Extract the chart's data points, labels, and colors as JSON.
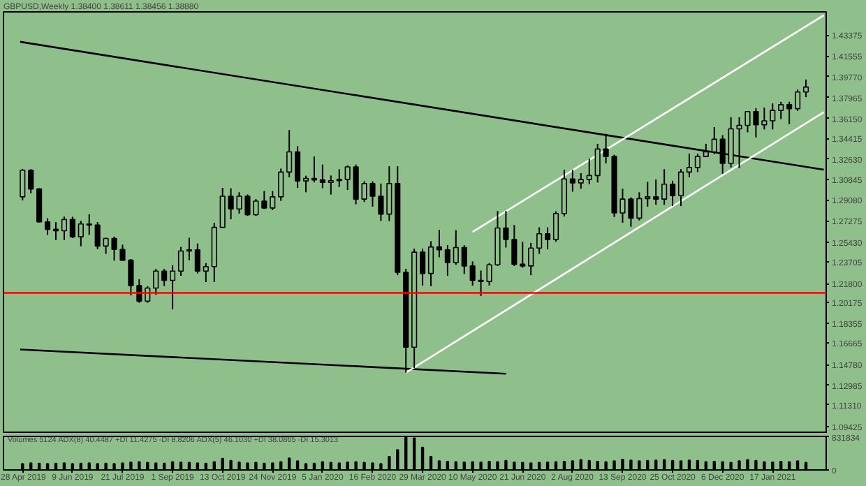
{
  "chart_data": [
    {
      "type": "candlestick",
      "title": "GBPUSD,Weekly 1.38400 1.38611 1.38456 1.38880",
      "x": [
        "2019-04-28",
        "2019-05-05",
        "2019-05-12",
        "2019-05-19",
        "2019-05-26",
        "2019-06-02",
        "2019-06-09",
        "2019-06-16",
        "2019-06-23",
        "2019-06-30",
        "2019-07-07",
        "2019-07-14",
        "2019-07-21",
        "2019-07-28",
        "2019-08-04",
        "2019-08-11",
        "2019-08-18",
        "2019-08-25",
        "2019-09-01",
        "2019-09-08",
        "2019-09-15",
        "2019-09-22",
        "2019-09-29",
        "2019-10-06",
        "2019-10-13",
        "2019-10-20",
        "2019-10-27",
        "2019-11-03",
        "2019-11-10",
        "2019-11-17",
        "2019-11-24",
        "2019-12-01",
        "2019-12-08",
        "2019-12-15",
        "2019-12-22",
        "2019-12-29",
        "2020-01-05",
        "2020-01-12",
        "2020-01-19",
        "2020-01-26",
        "2020-02-02",
        "2020-02-09",
        "2020-02-16",
        "2020-02-23",
        "2020-03-01",
        "2020-03-08",
        "2020-03-15",
        "2020-03-22",
        "2020-03-29",
        "2020-04-05",
        "2020-04-12",
        "2020-04-19",
        "2020-04-26",
        "2020-05-03",
        "2020-05-10",
        "2020-05-17",
        "2020-05-24",
        "2020-05-31",
        "2020-06-07",
        "2020-06-14",
        "2020-06-21",
        "2020-06-28",
        "2020-07-05",
        "2020-07-12",
        "2020-07-19",
        "2020-07-26",
        "2020-08-02",
        "2020-08-09",
        "2020-08-16",
        "2020-08-23",
        "2020-08-30",
        "2020-09-06",
        "2020-09-13",
        "2020-09-20",
        "2020-09-27",
        "2020-10-04",
        "2020-10-11",
        "2020-10-18",
        "2020-10-25",
        "2020-11-01",
        "2020-11-08",
        "2020-11-15",
        "2020-11-22",
        "2020-11-29",
        "2020-12-06",
        "2020-12-13",
        "2020-12-20",
        "2020-12-27",
        "2021-01-03",
        "2021-01-10",
        "2021-01-17",
        "2021-01-24",
        "2021-01-31",
        "2021-02-07",
        "2021-02-14"
      ],
      "ohlc": [
        [
          1.2935,
          1.3177,
          1.2904,
          1.3166
        ],
        [
          1.3166,
          1.3175,
          1.2966,
          1.3003
        ],
        [
          1.3003,
          1.301,
          1.2712,
          1.2718
        ],
        [
          1.2718,
          1.2749,
          1.2605,
          1.2653
        ],
        [
          1.2653,
          1.2715,
          1.2559,
          1.264
        ],
        [
          1.264,
          1.2763,
          1.256,
          1.2738
        ],
        [
          1.2738,
          1.2762,
          1.2577,
          1.2588
        ],
        [
          1.2588,
          1.2727,
          1.2506,
          1.2699
        ],
        [
          1.2699,
          1.2784,
          1.2606,
          1.269
        ],
        [
          1.269,
          1.2716,
          1.248,
          1.2508
        ],
        [
          1.2508,
          1.258,
          1.244,
          1.2574
        ],
        [
          1.2574,
          1.259,
          1.2382,
          1.2478
        ],
        [
          1.2478,
          1.252,
          1.238,
          1.2385
        ],
        [
          1.2385,
          1.2395,
          1.208,
          1.2165
        ],
        [
          1.2165,
          1.222,
          1.2015,
          1.203
        ],
        [
          1.203,
          1.216,
          1.2015,
          1.2143
        ],
        [
          1.2143,
          1.231,
          1.2085,
          1.229
        ],
        [
          1.229,
          1.231,
          1.216,
          1.221
        ],
        [
          1.221,
          1.234,
          1.1958,
          1.229
        ],
        [
          1.229,
          1.25,
          1.225,
          1.2465
        ],
        [
          1.2465,
          1.258,
          1.2385,
          1.2475
        ],
        [
          1.2475,
          1.253,
          1.227,
          1.229
        ],
        [
          1.229,
          1.236,
          1.2195,
          1.233
        ],
        [
          1.233,
          1.271,
          1.2195,
          1.267
        ],
        [
          1.267,
          1.3013,
          1.267,
          1.294
        ],
        [
          1.294,
          1.301,
          1.274,
          1.283
        ],
        [
          1.283,
          1.2975,
          1.279,
          1.294
        ],
        [
          1.294,
          1.2955,
          1.277,
          1.278
        ],
        [
          1.278,
          1.2915,
          1.277,
          1.2898
        ],
        [
          1.2898,
          1.2985,
          1.283,
          1.2838
        ],
        [
          1.2838,
          1.2985,
          1.282,
          1.2935
        ],
        [
          1.2935,
          1.318,
          1.29,
          1.315
        ],
        [
          1.315,
          1.3514,
          1.3105,
          1.3325
        ],
        [
          1.3325,
          1.3375,
          1.3012,
          1.3073
        ],
        [
          1.3073,
          1.3118,
          1.2975,
          1.3095
        ],
        [
          1.3095,
          1.3285,
          1.306,
          1.3082
        ],
        [
          1.3082,
          1.3215,
          1.301,
          1.306
        ],
        [
          1.306,
          1.312,
          1.2955,
          1.3075
        ],
        [
          1.3075,
          1.3175,
          1.302,
          1.3085
        ],
        [
          1.3085,
          1.3208,
          1.2995,
          1.3195
        ],
        [
          1.3195,
          1.3215,
          1.287,
          1.2915
        ],
        [
          1.2915,
          1.307,
          1.289,
          1.305
        ],
        [
          1.305,
          1.307,
          1.285,
          1.294
        ],
        [
          1.294,
          1.305,
          1.2725,
          1.2785
        ],
        [
          1.2785,
          1.32,
          1.2725,
          1.305
        ],
        [
          1.305,
          1.32,
          1.2255,
          1.228
        ],
        [
          1.228,
          1.231,
          1.1409,
          1.163
        ],
        [
          1.163,
          1.2485,
          1.145,
          1.2455
        ],
        [
          1.2455,
          1.2485,
          1.2165,
          1.227
        ],
        [
          1.227,
          1.255,
          1.216,
          1.25
        ],
        [
          1.25,
          1.2648,
          1.241,
          1.2475
        ],
        [
          1.2475,
          1.2515,
          1.225,
          1.2365
        ],
        [
          1.2365,
          1.2645,
          1.2345,
          1.2495
        ],
        [
          1.2495,
          1.2515,
          1.2265,
          1.2335
        ],
        [
          1.2335,
          1.2375,
          1.2165,
          1.221
        ],
        [
          1.221,
          1.2295,
          1.2075,
          1.22
        ],
        [
          1.22,
          1.236,
          1.2165,
          1.2345
        ],
        [
          1.2345,
          1.2812,
          1.2335,
          1.2665
        ],
        [
          1.2665,
          1.2812,
          1.2495,
          1.2565
        ],
        [
          1.2565,
          1.269,
          1.2335,
          1.235
        ],
        [
          1.235,
          1.2545,
          1.232,
          1.2335
        ],
        [
          1.2335,
          1.2535,
          1.2255,
          1.249
        ],
        [
          1.249,
          1.267,
          1.244,
          1.2615
        ],
        [
          1.2615,
          1.267,
          1.248,
          1.2565
        ],
        [
          1.2565,
          1.281,
          1.2545,
          1.279
        ],
        [
          1.279,
          1.317,
          1.2765,
          1.309
        ],
        [
          1.309,
          1.317,
          1.298,
          1.3055
        ],
        [
          1.3055,
          1.314,
          1.3005,
          1.3085
        ],
        [
          1.3085,
          1.3265,
          1.3045,
          1.312
        ],
        [
          1.312,
          1.3395,
          1.306,
          1.335
        ],
        [
          1.335,
          1.3482,
          1.3225,
          1.3285
        ],
        [
          1.3285,
          1.33,
          1.276,
          1.2795
        ],
        [
          1.2795,
          1.3005,
          1.271,
          1.2915
        ],
        [
          1.2915,
          1.293,
          1.2675,
          1.275
        ],
        [
          1.275,
          1.2975,
          1.273,
          1.292
        ],
        [
          1.292,
          1.3065,
          1.285,
          1.2935
        ],
        [
          1.2935,
          1.3085,
          1.2865,
          1.2915
        ],
        [
          1.2915,
          1.3175,
          1.2865,
          1.3045
        ],
        [
          1.3045,
          1.3075,
          1.2855,
          1.2945
        ],
        [
          1.2945,
          1.3175,
          1.2855,
          1.315
        ],
        [
          1.315,
          1.331,
          1.3105,
          1.319
        ],
        [
          1.319,
          1.331,
          1.315,
          1.3285
        ],
        [
          1.3285,
          1.3395,
          1.328,
          1.3325
        ],
        [
          1.3325,
          1.354,
          1.3305,
          1.3435
        ],
        [
          1.3435,
          1.347,
          1.3135,
          1.3225
        ],
        [
          1.3225,
          1.3625,
          1.319,
          1.3525
        ],
        [
          1.3525,
          1.3625,
          1.3185,
          1.3555
        ],
        [
          1.3555,
          1.368,
          1.3495,
          1.3675
        ],
        [
          1.3675,
          1.3705,
          1.345,
          1.356
        ],
        [
          1.356,
          1.371,
          1.352,
          1.3595
        ],
        [
          1.3595,
          1.3745,
          1.352,
          1.3685
        ],
        [
          1.3685,
          1.376,
          1.361,
          1.3735
        ],
        [
          1.3735,
          1.376,
          1.3565,
          1.37
        ],
        [
          1.37,
          1.3865,
          1.368,
          1.3845
        ],
        [
          1.3845,
          1.3953,
          1.38,
          1.3888
        ]
      ],
      "series": [
        {
          "type": "line",
          "color": "#000000",
          "x": [
            "2019-04-26",
            "2021-03-01"
          ],
          "values": [
            1.428,
            1.317
          ]
        },
        {
          "type": "line",
          "color": "#000000",
          "x": [
            "2019-04-26",
            "2020-06-07"
          ],
          "values": [
            1.161,
            1.14
          ]
        },
        {
          "type": "line",
          "color": "#ffffff",
          "x": [
            "2020-03-15",
            "2021-03-01"
          ],
          "values": [
            1.141,
            1.367
          ]
        },
        {
          "type": "line",
          "color": "#ffffff",
          "x": [
            "2020-05-10",
            "2021-03-01"
          ],
          "values": [
            1.263,
            1.451
          ]
        }
      ],
      "ref_lines": [
        {
          "axis": "y",
          "value": 1.2101,
          "label": null,
          "color": "#ff0000"
        }
      ],
      "xlim": [
        "2019-04-12",
        "2021-03-03"
      ],
      "ylim": [
        1.088,
        1.454
      ],
      "yticks": [
        1.43375,
        1.41555,
        {
          "value": 1.3977,
          "label": "1.39770"
        },
        1.37965,
        {
          "value": 1.3615,
          "label": "1.36150"
        },
        1.34415,
        {
          "value": 1.3263,
          "label": "1.32630"
        },
        1.30845,
        {
          "value": 1.2908,
          "label": "1.29080"
        },
        1.27275,
        {
          "value": 1.2543,
          "label": "1.25430"
        },
        1.23705,
        {
          "value": 1.218,
          "label": "1.21800"
        },
        1.20175,
        1.18355,
        1.16665,
        {
          "value": 1.1478,
          "label": "1.14780"
        },
        1.12985,
        {
          "value": 1.1131,
          "label": "1.11310"
        },
        1.09425
      ],
      "tick_labels": "y",
      "grid": false
    },
    {
      "type": "bar",
      "annotations": [
        "Volumes 5124 ADX(8) 40.4487 +DI 11.4275 -DI 8.8206 ADX(5) 46.1030 +DI 38.0865 -DI 15.3013"
      ],
      "x": [
        "2019-04-28",
        "2019-05-05",
        "2019-05-12",
        "2019-05-19",
        "2019-05-26",
        "2019-06-02",
        "2019-06-09",
        "2019-06-16",
        "2019-06-23",
        "2019-06-30",
        "2019-07-07",
        "2019-07-14",
        "2019-07-21",
        "2019-07-28",
        "2019-08-04",
        "2019-08-11",
        "2019-08-18",
        "2019-08-25",
        "2019-09-01",
        "2019-09-08",
        "2019-09-15",
        "2019-09-22",
        "2019-09-29",
        "2019-10-06",
        "2019-10-13",
        "2019-10-20",
        "2019-10-27",
        "2019-11-03",
        "2019-11-10",
        "2019-11-17",
        "2019-11-24",
        "2019-12-01",
        "2019-12-08",
        "2019-12-15",
        "2019-12-22",
        "2019-12-29",
        "2020-01-05",
        "2020-01-12",
        "2020-01-19",
        "2020-01-26",
        "2020-02-02",
        "2020-02-09",
        "2020-02-16",
        "2020-02-23",
        "2020-03-01",
        "2020-03-08",
        "2020-03-15",
        "2020-03-22",
        "2020-03-29",
        "2020-04-05",
        "2020-04-12",
        "2020-04-19",
        "2020-04-26",
        "2020-05-03",
        "2020-05-10",
        "2020-05-17",
        "2020-05-24",
        "2020-05-31",
        "2020-06-07",
        "2020-06-14",
        "2020-06-21",
        "2020-06-28",
        "2020-07-05",
        "2020-07-12",
        "2020-07-19",
        "2020-07-26",
        "2020-08-02",
        "2020-08-09",
        "2020-08-16",
        "2020-08-23",
        "2020-08-30",
        "2020-09-06",
        "2020-09-13",
        "2020-09-20",
        "2020-09-27",
        "2020-10-04",
        "2020-10-11",
        "2020-10-18",
        "2020-10-25",
        "2020-11-01",
        "2020-11-08",
        "2020-11-15",
        "2020-11-22",
        "2020-11-29",
        "2020-12-06",
        "2020-12-13",
        "2020-12-20",
        "2020-12-27",
        "2021-01-03",
        "2021-01-10",
        "2021-01-17",
        "2021-01-24",
        "2021-01-31",
        "2021-02-07",
        "2021-02-14"
      ],
      "values": [
        150000,
        170000,
        160000,
        150000,
        160000,
        170000,
        150000,
        160000,
        170000,
        150000,
        160000,
        150000,
        170000,
        190000,
        200000,
        180000,
        170000,
        160000,
        200000,
        190000,
        180000,
        170000,
        160000,
        200000,
        280000,
        230000,
        190000,
        170000,
        180000,
        160000,
        170000,
        200000,
        290000,
        220000,
        150000,
        160000,
        200000,
        180000,
        170000,
        190000,
        200000,
        180000,
        170000,
        150000,
        330000,
        500000,
        800000,
        790000,
        560000,
        330000,
        220000,
        210000,
        200000,
        190000,
        200000,
        190000,
        210000,
        200000,
        230000,
        190000,
        180000,
        170000,
        180000,
        190000,
        200000,
        210000,
        220000,
        250000,
        230000,
        210000,
        200000,
        220000,
        260000,
        240000,
        220000,
        230000,
        240000,
        250000,
        230000,
        220000,
        240000,
        230000,
        200000,
        210000,
        200000,
        180000,
        220000,
        250000,
        230000,
        200000,
        190000,
        210000,
        200000,
        220000,
        180000
      ],
      "color": "#000000",
      "xlim": [
        "2019-04-12",
        "2021-03-03"
      ],
      "ylim": [
        0,
        831834
      ],
      "yticks": [
        0,
        831834
      ],
      "xticks": [
        {
          "value": "2019-04-28",
          "label": "28 Apr 2019"
        },
        {
          "value": "2019-06-09",
          "label": "9 Jun 2019"
        },
        {
          "value": "2019-07-21",
          "label": "21 Jul 2019"
        },
        {
          "value": "2019-09-01",
          "label": "1 Sep 2019"
        },
        {
          "value": "2019-10-13",
          "label": "13 Oct 2019"
        },
        {
          "value": "2019-11-24",
          "label": "24 Nov 2019"
        },
        {
          "value": "2020-01-05",
          "label": "5 Jan 2020"
        },
        {
          "value": "2020-02-16",
          "label": "16 Feb 2020"
        },
        {
          "value": "2020-03-29",
          "label": "29 Mar 2020"
        },
        {
          "value": "2020-05-10",
          "label": "10 May 2020"
        },
        {
          "value": "2020-06-21",
          "label": "21 Jun 2020"
        },
        {
          "value": "2020-08-02",
          "label": "2 Aug 2020"
        },
        {
          "value": "2020-09-13",
          "label": "13 Sep 2020"
        },
        {
          "value": "2020-10-25",
          "label": "25 Oct 2020"
        },
        {
          "value": "2020-12-06",
          "label": "6 Dec 2020"
        },
        {
          "value": "2021-01-17",
          "label": "17 Jan 2021"
        }
      ],
      "grid": false
    }
  ]
}
